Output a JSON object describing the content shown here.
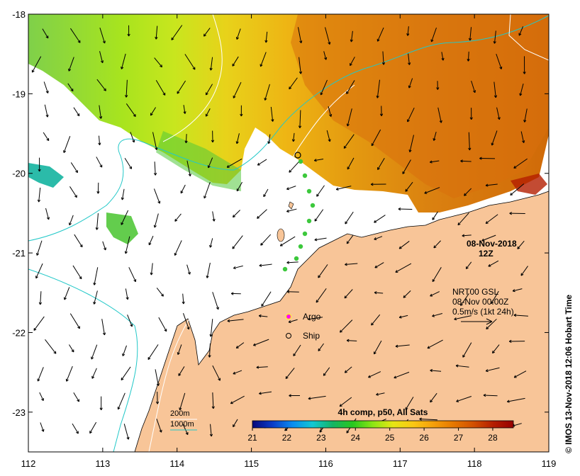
{
  "map": {
    "lon_range": [
      112,
      119
    ],
    "lat_range": [
      -23.5,
      -18
    ],
    "x_ticks": [
      "112",
      "113",
      "114",
      "115",
      "116",
      "117",
      "118",
      "119"
    ],
    "y_ticks": [
      "-18",
      "-19",
      "-20",
      "-21",
      "-22",
      "-23"
    ],
    "colors": {
      "land": "#f8c598",
      "ocean_nodata": "#ffffff",
      "isobath_200": "#ffffff",
      "isobath_1000": "#22c8c8",
      "argo": "#ff00ff"
    }
  },
  "date": {
    "day": "08-Nov-2018",
    "time": "12Z"
  },
  "current_info": {
    "line1": "NRT00 GSL",
    "line2": "08-Nov 00:00Z",
    "line3": "0.5m/s (1kt 24h)"
  },
  "legend": {
    "argo_label": "Argo",
    "ship_label": "Ship",
    "isobath_200_label": "200m",
    "isobath_1000_label": "1000m"
  },
  "colorbar": {
    "title": "4h comp, p50, All Sats",
    "ticks": [
      "21",
      "22",
      "23",
      "24",
      "25",
      "26",
      "27",
      "28"
    ],
    "range": [
      21,
      28.6
    ],
    "gradient": [
      "#08087a",
      "#0a3cc8",
      "#0a8cf0",
      "#12c8d2",
      "#14b464",
      "#28c81e",
      "#8ce614",
      "#e6e614",
      "#fac814",
      "#f5a00a",
      "#e67800",
      "#d25000",
      "#b41e00",
      "#960000"
    ]
  },
  "credit": "© IMOS 13-Nov-2018 12:06 Hobart Time"
}
